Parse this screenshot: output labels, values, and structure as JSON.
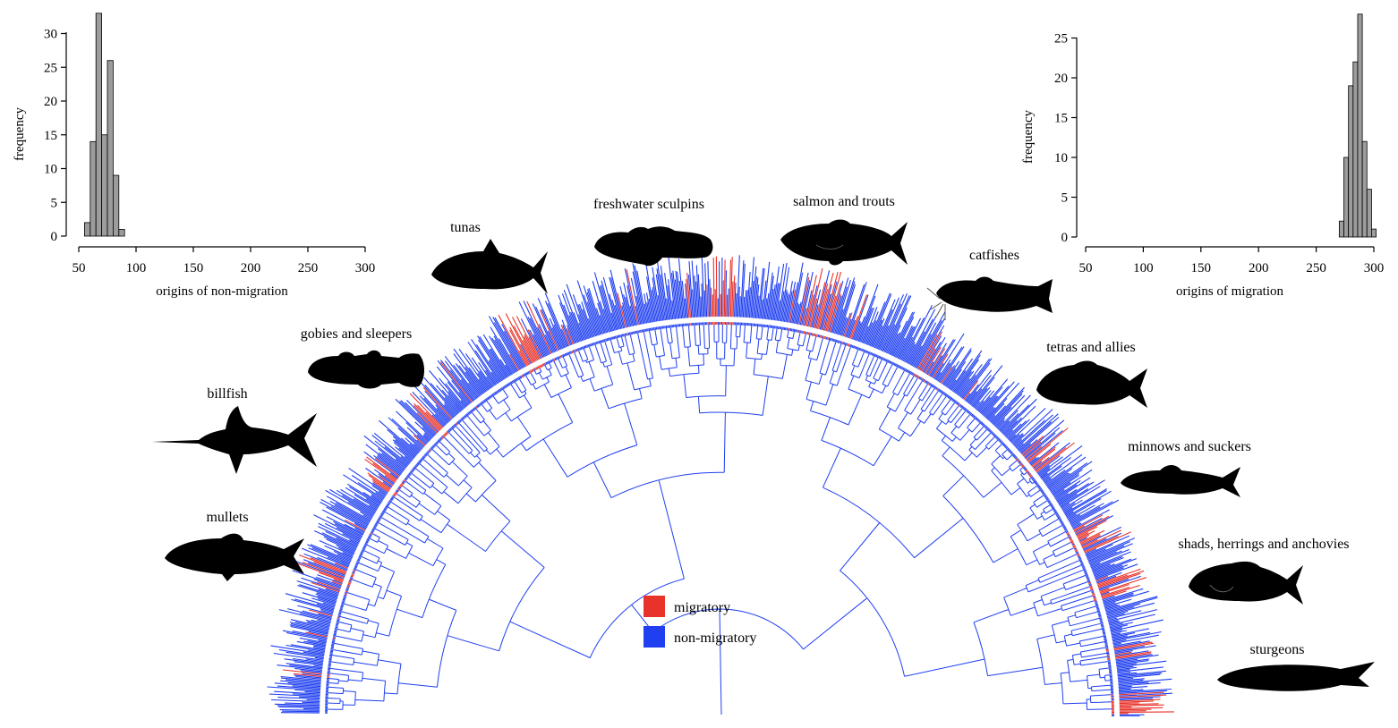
{
  "colors": {
    "migratory": "#e8332a",
    "non_migratory": "#1f3ff0",
    "histogram_bar": "#9c9c9c",
    "silhouette": "#000000"
  },
  "chart_data": [
    {
      "type": "bar",
      "panel": "top-left",
      "xlabel": "origins of non-migration",
      "ylabel": "frequency",
      "xlim": [
        50,
        300
      ],
      "ylim": [
        0,
        33
      ],
      "xticks": [
        50,
        100,
        150,
        200,
        250,
        300
      ],
      "yticks": [
        0,
        5,
        10,
        15,
        20,
        25,
        30
      ],
      "bin_width": 5,
      "bins_start": [
        55,
        60,
        65,
        70,
        75,
        80,
        85
      ],
      "values": [
        2,
        14,
        33,
        15,
        26,
        9,
        1
      ]
    },
    {
      "type": "bar",
      "panel": "top-right",
      "xlabel": "origins of migration",
      "ylabel": "frequency",
      "xlim": [
        50,
        300
      ],
      "ylim": [
        0,
        28
      ],
      "xticks": [
        50,
        100,
        150,
        200,
        250,
        300
      ],
      "yticks": [
        0,
        5,
        10,
        15,
        20,
        25
      ],
      "bin_width": 4,
      "bins_start": [
        270,
        274,
        278,
        282,
        286,
        290,
        294,
        298
      ],
      "values": [
        2,
        10,
        19,
        22,
        28,
        12,
        6,
        1
      ]
    },
    {
      "type": "tree",
      "panel": "bottom-center",
      "legend": [
        "migratory",
        "non-migratory"
      ],
      "legend_position": "center",
      "clade_labels": [
        "mullets",
        "billfish",
        "gobies and sleepers",
        "tunas",
        "freshwater sculpins",
        "salmon and trouts",
        "catfishes",
        "tetras and allies",
        "minnows and suckers",
        "shads, herrings and anchovies",
        "sturgeons"
      ]
    }
  ]
}
